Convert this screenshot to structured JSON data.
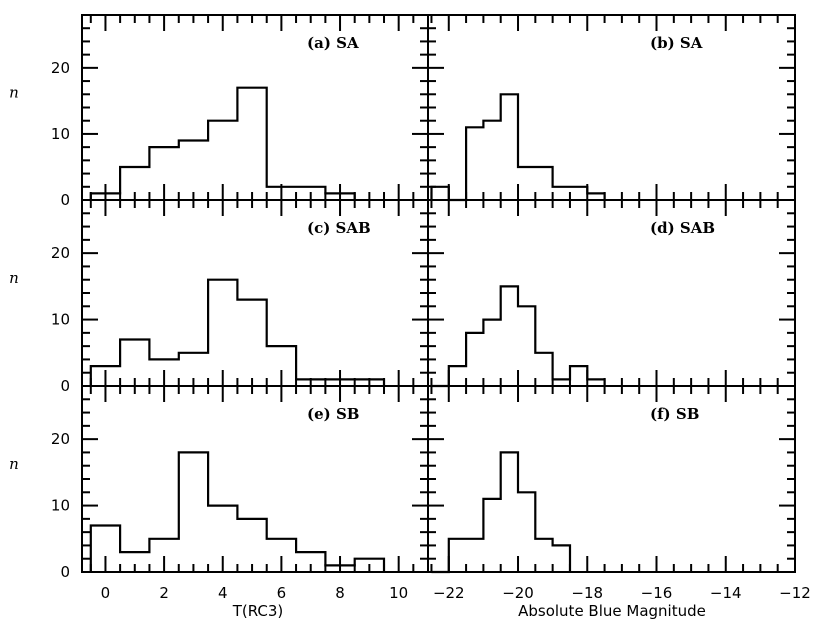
{
  "chart_data": {
    "type": "bar",
    "grid": false,
    "bins_note_left": "histogram, bin width 1 in T(RC3)",
    "columns": [
      {
        "xlabel": "T(RC3)",
        "xlim": [
          -0.8,
          11
        ],
        "bin_width": 1,
        "xticks": [
          0,
          2,
          4,
          6,
          8,
          10
        ],
        "xtick_labels": [
          "0",
          "2",
          "4",
          "6",
          "8",
          "10"
        ]
      },
      {
        "xlabel": "Absolute Blue Magnitude",
        "xlim": [
          -22.6,
          -12
        ],
        "bin_width": 0.5,
        "xticks": [
          -22,
          -20,
          -18,
          -16,
          -14,
          -12
        ],
        "xtick_labels": [
          "−22",
          "−20",
          "−18",
          "−16",
          "−14",
          "−12"
        ]
      }
    ],
    "rows": [
      {
        "ylabel": "n",
        "ylim": [
          0,
          28
        ],
        "yticks": [
          0,
          10,
          20
        ],
        "ytick_labels": [
          "0",
          "10",
          "20"
        ]
      },
      {
        "ylabel": "n",
        "ylim": [
          0,
          28
        ],
        "yticks": [
          0,
          10,
          20
        ],
        "ytick_labels": [
          "0",
          "10",
          "20"
        ]
      },
      {
        "ylabel": "n",
        "ylim": [
          0,
          28
        ],
        "yticks": [
          0,
          10,
          20
        ],
        "ytick_labels": [
          "0",
          "10",
          "20"
        ]
      }
    ],
    "panels": [
      {
        "label": "(a) SA",
        "row": 0,
        "col": 0,
        "bin_edges": [
          -0.5,
          0.5,
          1.5,
          2.5,
          3.5,
          4.5,
          5.5,
          6.5,
          7.5,
          8.5
        ],
        "counts": [
          1,
          5,
          8,
          9,
          12,
          17,
          2,
          2,
          1
        ]
      },
      {
        "label": "(b) SA",
        "row": 0,
        "col": 1,
        "bin_edges": [
          -22.5,
          -22.0,
          -21.5,
          -21.0,
          -20.5,
          -20.0,
          -19.5,
          -19.0,
          -18.5,
          -18.0,
          -17.5
        ],
        "counts": [
          2,
          0,
          11,
          12,
          16,
          5,
          5,
          2,
          2,
          1
        ]
      },
      {
        "label": "(c) SAB",
        "row": 1,
        "col": 0,
        "bin_edges": [
          -0.5,
          0.5,
          1.5,
          2.5,
          3.5,
          4.5,
          5.5,
          6.5,
          7.5,
          8.5,
          9.5
        ],
        "counts": [
          3,
          7,
          4,
          5,
          16,
          13,
          6,
          1,
          1,
          1
        ]
      },
      {
        "label": "(d) SAB",
        "row": 1,
        "col": 1,
        "bin_edges": [
          -22.5,
          -22.0,
          -21.5,
          -21.0,
          -20.5,
          -20.0,
          -19.5,
          -19.0,
          -18.5,
          -18.0,
          -17.5
        ],
        "counts": [
          0,
          3,
          8,
          10,
          15,
          12,
          5,
          1,
          3,
          1
        ]
      },
      {
        "label": "(e) SB",
        "row": 2,
        "col": 0,
        "bin_edges": [
          -0.5,
          0.5,
          1.5,
          2.5,
          3.5,
          4.5,
          5.5,
          6.5,
          7.5,
          8.5,
          9.5
        ],
        "counts": [
          7,
          3,
          5,
          18,
          10,
          8,
          5,
          3,
          1,
          2
        ]
      },
      {
        "label": "(f) SB",
        "row": 2,
        "col": 1,
        "bin_edges": [
          -22.5,
          -22.0,
          -21.5,
          -21.0,
          -20.5,
          -20.0,
          -19.5,
          -19.0,
          -18.5
        ],
        "counts": [
          0,
          5,
          5,
          11,
          18,
          12,
          5,
          4
        ]
      }
    ]
  }
}
